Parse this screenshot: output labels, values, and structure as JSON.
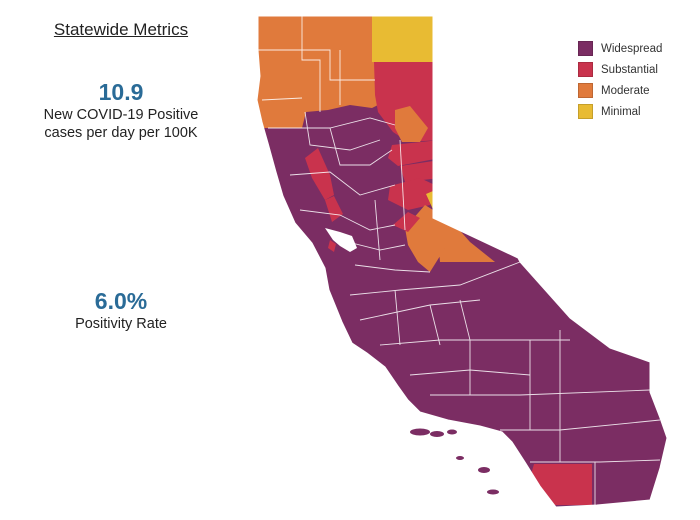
{
  "heading": "Statewide Metrics",
  "metrics": {
    "cases": {
      "value": "10.9",
      "label_line1": "New COVID-19 Positive",
      "label_line2": "cases per day per 100K"
    },
    "positivity": {
      "value": "6.0%",
      "label": "Positivity Rate"
    }
  },
  "legend": [
    {
      "label": "Widespread",
      "color": "#7b2d63"
    },
    {
      "label": "Substantial",
      "color": "#c9334d"
    },
    {
      "label": "Moderate",
      "color": "#e07a3c"
    },
    {
      "label": "Minimal",
      "color": "#e8bb33"
    }
  ],
  "colors": {
    "widespread": "#7b2d63",
    "substantial": "#c9334d",
    "moderate": "#e07a3c",
    "minimal": "#e8bb33",
    "text_value": "#2a6b97"
  }
}
